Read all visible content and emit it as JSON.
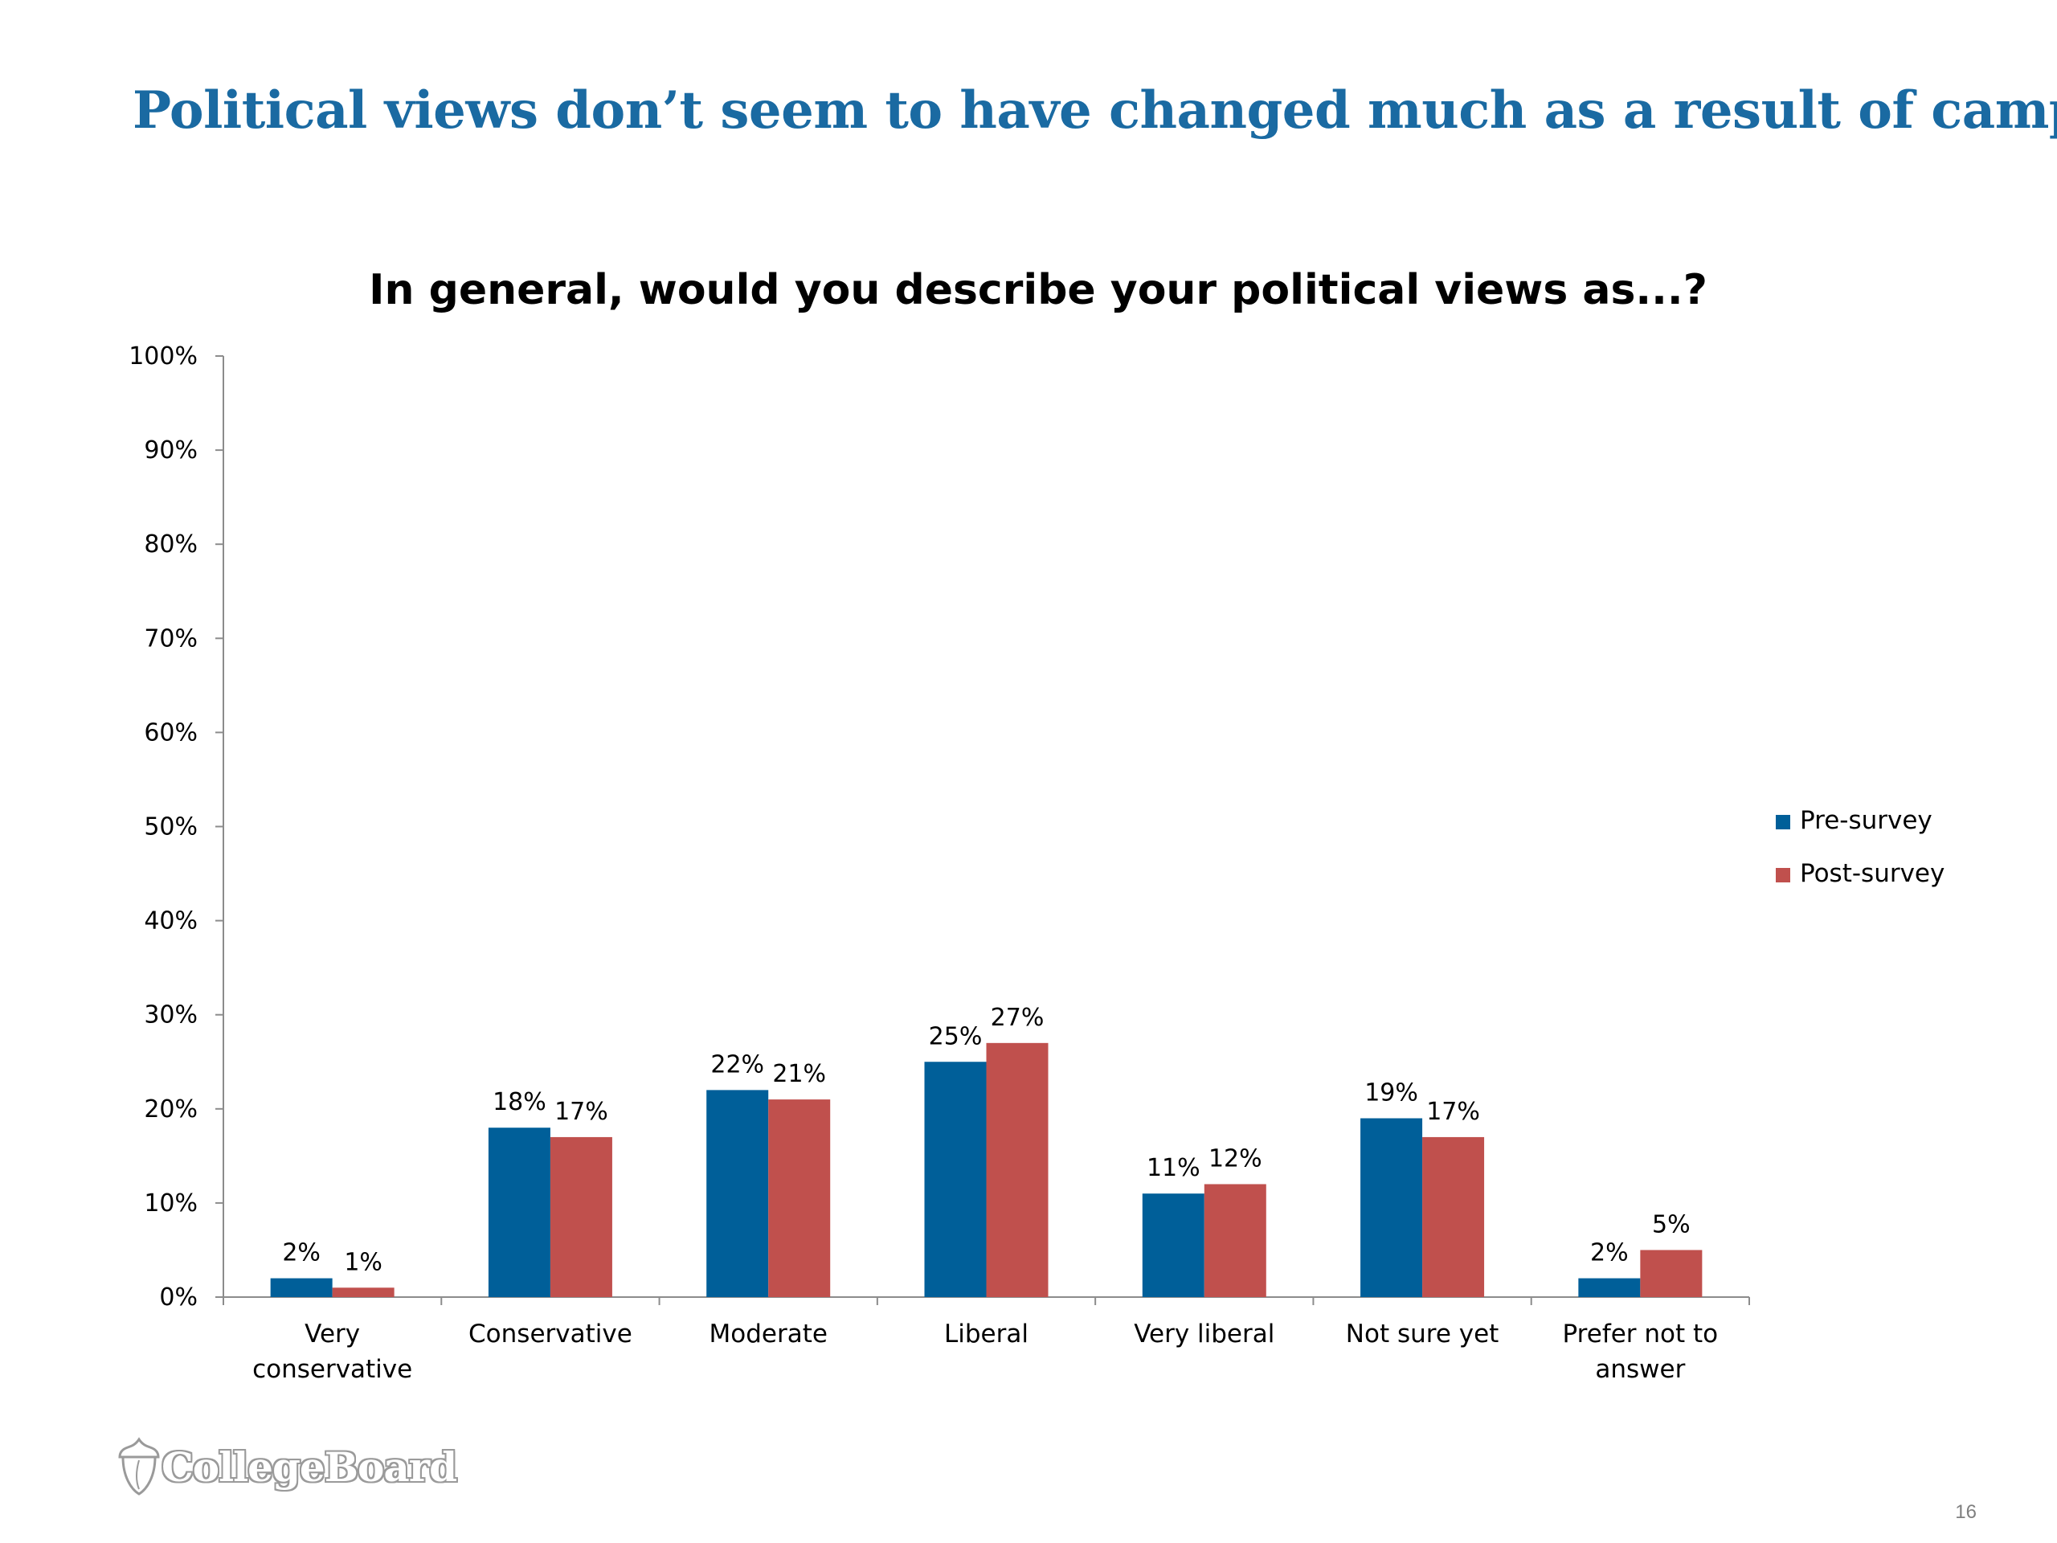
{
  "slide": {
    "title": "Political views don’t seem to have changed much as a result of camp",
    "logo_text": "CollegeBoard",
    "page_number": "16"
  },
  "colors": {
    "title": "#1a6aa2",
    "pre": "#005f99",
    "post": "#c0504d",
    "axis": "#8c8c8c"
  },
  "chart_data": {
    "type": "bar",
    "title": "In general, would you describe your political views as...?",
    "categories": [
      "Very conservative",
      "Conservative",
      "Moderate",
      "Liberal",
      "Very liberal",
      "Not sure yet",
      "Prefer not to answer"
    ],
    "series": [
      {
        "name": "Pre-survey",
        "color": "#005f99",
        "values": [
          2,
          18,
          22,
          25,
          11,
          19,
          2
        ]
      },
      {
        "name": "Post-survey",
        "color": "#c0504d",
        "values": [
          1,
          17,
          21,
          27,
          12,
          17,
          5
        ]
      }
    ],
    "data_labels": [
      [
        "2%",
        "18%",
        "22%",
        "25%",
        "11%",
        "19%",
        "2%"
      ],
      [
        "1%",
        "17%",
        "21%",
        "27%",
        "12%",
        "17%",
        "5%"
      ]
    ],
    "ylim": [
      0,
      100
    ],
    "yticks": [
      "0%",
      "10%",
      "20%",
      "30%",
      "40%",
      "50%",
      "60%",
      "70%",
      "80%",
      "90%",
      "100%"
    ],
    "xlabel": "",
    "ylabel": "",
    "legend_position": "right",
    "grid": false
  }
}
